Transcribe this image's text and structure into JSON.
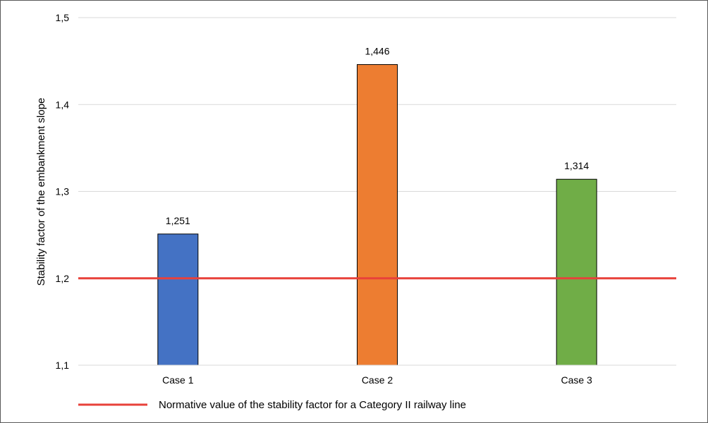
{
  "chart_data": {
    "type": "bar",
    "categories": [
      "Case 1",
      "Case 2",
      "Case 3"
    ],
    "values": [
      1.251,
      1.446,
      1.314
    ],
    "value_labels": [
      "1,251",
      "1,446",
      "1,314"
    ],
    "bar_colors": [
      "#4472c4",
      "#ed7d31",
      "#70ad47"
    ],
    "ylabel": "Stability factor of the embankment slope",
    "ylim": [
      1.1,
      1.5
    ],
    "yticks": [
      1.1,
      1.2,
      1.3,
      1.4,
      1.5
    ],
    "ytick_labels": [
      "1,1",
      "1,2",
      "1,3",
      "1,4",
      "1,5"
    ],
    "grid": true,
    "reference_line": {
      "value": 1.2,
      "color": "#e8413a",
      "label": "Normative value of the stability factor for a Category II railway line"
    },
    "legend": {
      "position": "bottom-left"
    }
  }
}
